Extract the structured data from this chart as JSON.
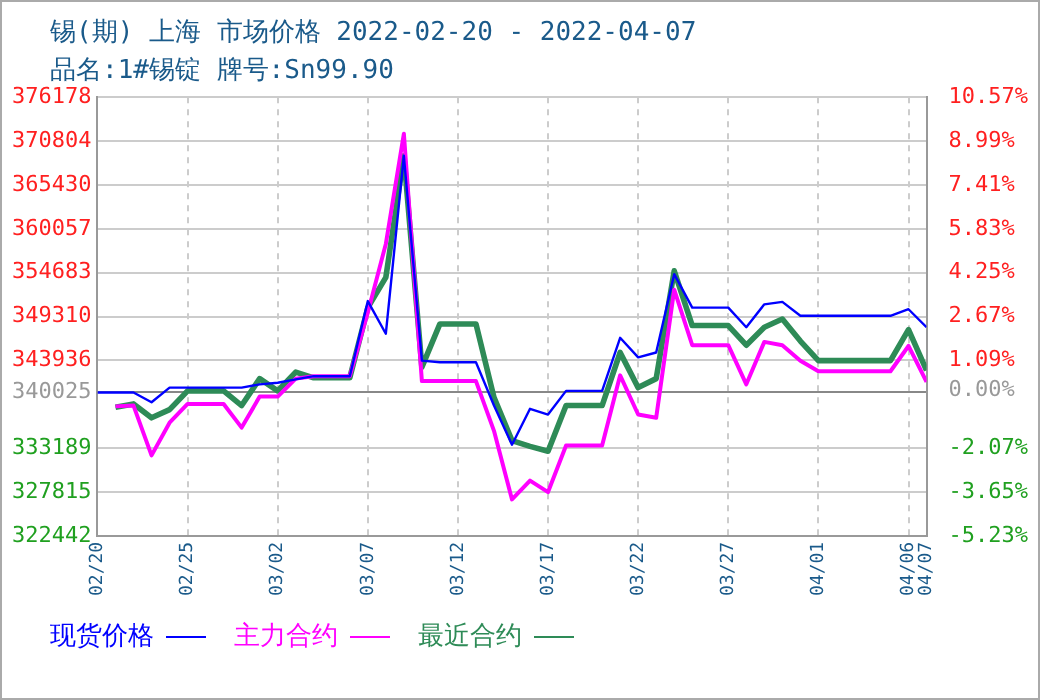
{
  "chart_data": {
    "type": "line",
    "title": "锡(期) 上海 市场价格 2022-02-20 - 2022-04-07",
    "subtitle": "品名:1#锡锭 牌号:Sn99.90",
    "x": [
      "--02-20",
      "--02-21",
      "--02-22",
      "--02-23",
      "--02-24",
      "--02-25",
      "--02-26",
      "--02-27",
      "--02-28",
      "--03-01",
      "--03-02",
      "--03-03",
      "--03-04",
      "--03-05",
      "--03-06",
      "--03-07",
      "--03-08",
      "--03-09",
      "--03-10",
      "--03-11",
      "--03-12",
      "--03-13",
      "--03-14",
      "--03-15",
      "--03-16",
      "--03-17",
      "--03-18",
      "--03-19",
      "--03-20",
      "--03-21",
      "--03-22",
      "--03-23",
      "--03-24",
      "--03-25",
      "--03-26",
      "--03-27",
      "--03-28",
      "--03-29",
      "--03-30",
      "--03-31",
      "--04-01",
      "--04-02",
      "--04-03",
      "--04-04",
      "--04-05",
      "--04-06",
      "--04-07"
    ],
    "series": [
      {
        "name": "现货价格",
        "color": "#0000ff",
        "values": [
          340000,
          340000,
          340000,
          338800,
          340600,
          340600,
          340600,
          340600,
          340600,
          341000,
          341200,
          341600,
          342000,
          342000,
          342000,
          351200,
          347200,
          369000,
          343900,
          343700,
          343700,
          343700,
          338400,
          333600,
          338000,
          337300,
          340200,
          340200,
          340200,
          346700,
          344300,
          344900,
          354500,
          350400,
          350400,
          350400,
          348000,
          350800,
          351100,
          349400,
          349400,
          349400,
          349400,
          349400,
          349400,
          350200,
          348000
        ]
      },
      {
        "name": "主力合约",
        "color": "#ff00ff",
        "values": [
          null,
          338300,
          338400,
          332300,
          336300,
          338600,
          338600,
          338600,
          335700,
          339500,
          339500,
          341700,
          342000,
          342000,
          342000,
          349800,
          358200,
          371700,
          341400,
          341400,
          341400,
          341400,
          335300,
          326900,
          329200,
          327800,
          333500,
          333500,
          333500,
          342100,
          337300,
          336900,
          352600,
          345800,
          345800,
          345800,
          341000,
          346200,
          345800,
          343900,
          342600,
          342600,
          342600,
          342600,
          342600,
          345700,
          341300
        ]
      },
      {
        "name": "最近合约",
        "color": "#2e8b57",
        "values": [
          null,
          338200,
          338600,
          336900,
          337900,
          340200,
          340200,
          340200,
          338400,
          341700,
          340200,
          342500,
          341800,
          341800,
          341800,
          350400,
          354100,
          369000,
          343100,
          348400,
          348400,
          348400,
          339400,
          334100,
          333400,
          332800,
          338400,
          338400,
          338400,
          344900,
          340600,
          341700,
          354900,
          348200,
          348200,
          348200,
          345800,
          348000,
          349000,
          346300,
          343900,
          343900,
          343900,
          343900,
          343900,
          347700,
          342700
        ]
      }
    ],
    "xlim": [
      "--02-20",
      "--04-07"
    ],
    "xticks": [
      {
        "value": "--02-20",
        "label": "02/20"
      },
      {
        "value": "--02-25",
        "label": "02/25"
      },
      {
        "value": "--03-02",
        "label": "03/02"
      },
      {
        "value": "--03-07",
        "label": "03/07"
      },
      {
        "value": "--03-12",
        "label": "03/12"
      },
      {
        "value": "--03-17",
        "label": "03/17"
      },
      {
        "value": "--03-22",
        "label": "03/22"
      },
      {
        "value": "--03-27",
        "label": "03/27"
      },
      {
        "value": "--04-01",
        "label": "04/01"
      },
      {
        "value": "--04-06",
        "label": "04/06"
      },
      {
        "value": "--04-07",
        "label": "04/07"
      }
    ],
    "ylim": [
      322442,
      376178
    ],
    "yticks": [
      322442,
      327815,
      333189,
      340025,
      343936,
      349310,
      354683,
      360057,
      365430,
      370804,
      376178
    ],
    "y2lim": [
      -5.23,
      10.57
    ],
    "y2ticks": [
      {
        "value": -5.23,
        "label": "-5.23%"
      },
      {
        "value": -3.65,
        "label": "-3.65%"
      },
      {
        "value": -2.07,
        "label": "-2.07%"
      },
      {
        "value": 0,
        "label": "0.00%"
      },
      {
        "value": 1.09,
        "label": "1.09%"
      },
      {
        "value": 2.67,
        "label": "2.67%"
      },
      {
        "value": 4.25,
        "label": "4.25%"
      },
      {
        "value": 5.83,
        "label": "5.83%"
      },
      {
        "value": 7.41,
        "label": "7.41%"
      },
      {
        "value": 8.99,
        "label": "8.99%"
      },
      {
        "value": 10.57,
        "label": "10.57%"
      }
    ],
    "grid": true,
    "legend": "bottom",
    "marker": "none",
    "line_style": "solid"
  }
}
